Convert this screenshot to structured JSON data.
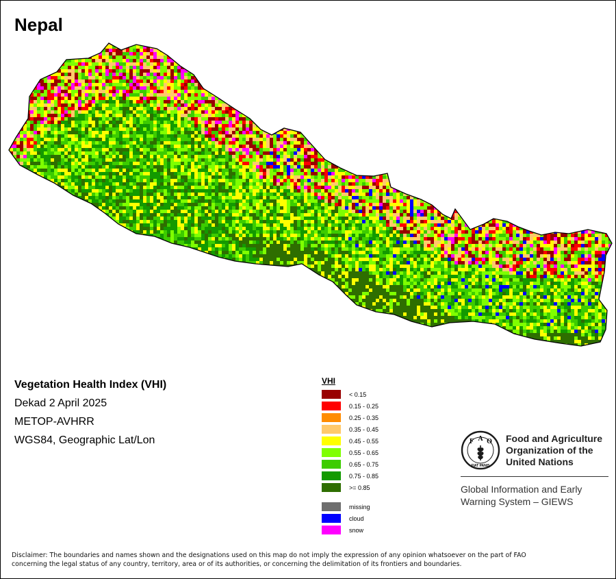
{
  "map": {
    "title": "Nepal",
    "info_lines": {
      "index_name": "Vegetation Health Index (VHI)",
      "period": "Dekad 2 April 2025",
      "sensor": "METOP-AVHRR",
      "projection": "WGS84, Geographic Lat/Lon"
    },
    "legend": {
      "title": "VHI",
      "classes": [
        {
          "label": "< 0.15",
          "color": "#990000"
        },
        {
          "label": "0.15 - 0.25",
          "color": "#ff0000"
        },
        {
          "label": "0.25 - 0.35",
          "color": "#ff8c00"
        },
        {
          "label": "0.35 - 0.45",
          "color": "#ffc96b"
        },
        {
          "label": "0.45 - 0.55",
          "color": "#ffff00"
        },
        {
          "label": "0.55 - 0.65",
          "color": "#7fff00"
        },
        {
          "label": "0.65 - 0.75",
          "color": "#3dcc00"
        },
        {
          "label": "0.75 - 0.85",
          "color": "#139a00"
        },
        {
          "label": ">= 0.85",
          "color": "#2e6e00"
        }
      ],
      "special": [
        {
          "label": "missing",
          "color": "#6e6e6e"
        },
        {
          "label": "cloud",
          "color": "#0000ff"
        },
        {
          "label": "snow",
          "color": "#ff00ff"
        }
      ]
    },
    "organization": {
      "name_line1": "Food and Agriculture",
      "name_line2": "Organization of the",
      "name_line3": "United Nations",
      "system_line1": "Global Information and Early",
      "system_line2": "Warning System – GIEWS",
      "logo_letters": {
        "f": "F",
        "a": "A",
        "o": "O"
      },
      "motto": "FIAT PANIS"
    },
    "disclaimer_line1": "Disclaimer: The boundaries and names shown and the designations used on this map do not imply the expression of any opinion whatsoever on the part of FAO",
    "disclaimer_line2": "concerning the legal status of any country, territory, area or of its authorities, or concerning the delimitation of its frontiers and boundaries."
  }
}
